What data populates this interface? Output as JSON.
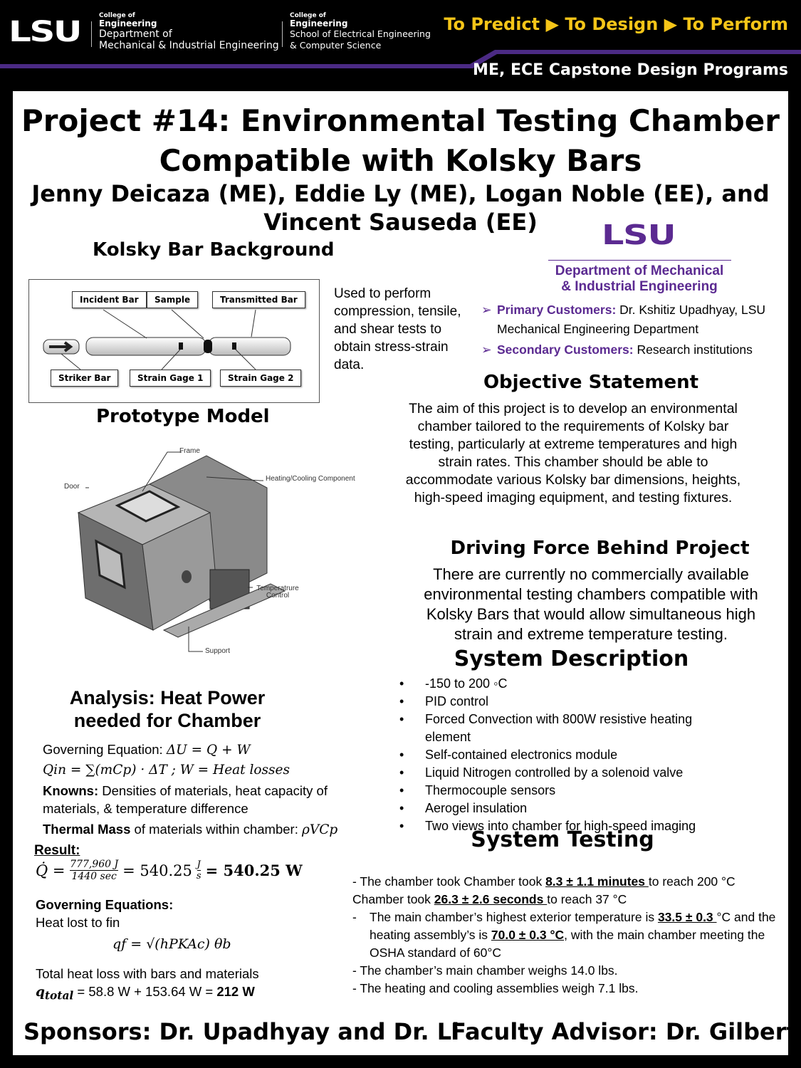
{
  "header": {
    "logo": "LSU",
    "college_of": "College of",
    "engineering": "Engineering",
    "dept1": [
      "Department of",
      "Mechanical & Industrial Engineering"
    ],
    "dept2": [
      "School of Electrical Engineering",
      "& Computer Science"
    ],
    "tagline": "To Predict ▶ To Design ▶ To Perform",
    "program": "ME, ECE Capstone Design Programs",
    "accent": "#4b2a84",
    "tag_color": "#f5c518"
  },
  "title": [
    "Project #14: Environmental Testing Chamber",
    "Compatible with Kolsky Bars"
  ],
  "authors": [
    "Jenny Deicaza (ME), Eddie Ly (ME), Logan Noble (EE), and",
    "Vincent Sauseda (EE)"
  ],
  "kolsky": {
    "heading": "Kolsky Bar Background",
    "labels": [
      "Incident Bar",
      "Sample",
      "Transmitted Bar",
      "Striker Bar",
      "Strain Gage 1",
      "Strain Gage 2"
    ],
    "text": "Used to perform compression, tensile, and shear tests to obtain stress-strain data."
  },
  "dept_logo": {
    "logo": "LSU",
    "line1": "Department of Mechanical",
    "line2": "& Industrial Engineering"
  },
  "customers": {
    "primary_label": "Primary Customers:",
    "primary": " Dr. Kshitiz Upadhyay, LSU Mechanical Engineering Department",
    "secondary_label": "Secondary Customers:",
    "secondary": " Research institutions"
  },
  "prototype": {
    "heading": "Prototype Model",
    "labels": [
      "Frame",
      "Heating/Cooling Component",
      "Door",
      "Temperatrure Control",
      "Support"
    ]
  },
  "objective": {
    "heading": "Objective Statement",
    "text": "The aim of this project is to develop an environmental chamber tailored to the requirements of Kolsky bar testing, particularly at extreme temperatures and high strain rates. This chamber should be able to accommodate various Kolsky bar dimensions, heights, high-speed imaging equipment, and testing fixtures."
  },
  "driving": {
    "heading": "Driving Force Behind Project",
    "text": "There are currently no commercially available environmental testing chambers compatible with Kolsky Bars that would allow simultaneous high strain and extreme temperature testing."
  },
  "system_description": {
    "heading": "System Description",
    "items": [
      "-150 to 200 ◦C",
      "PID control",
      "Forced Convection with 800W resistive heating element",
      "Self-contained electronics module",
      "Liquid Nitrogen controlled by a solenoid valve",
      "Thermocouple sensors",
      "Aerogel insulation",
      "Two views into chamber for high-speed imaging"
    ]
  },
  "analysis": {
    "heading": [
      "Analysis: Heat Power",
      "needed for Chamber"
    ],
    "gov_label": "Governing Equation: ",
    "gov_eq": "ΔU = Q + W",
    "qin_eq": "Qin = ∑(mCp) · ΔT ; W = Heat losses",
    "knowns_label": "Knowns:",
    "knowns": " Densities of materials, heat capacity of materials, & temperature difference",
    "thermal_label": "Thermal Mass",
    "thermal": " of materials within chamber:",
    "thermal_eq": "ρVCp",
    "result_label": "Result:",
    "q_num": "777,960 J",
    "q_den": "1440 sec",
    "q_mid": "= 540.25",
    "q_unit_num": "J",
    "q_unit_den": "s",
    "q_final": "= 540.25 W",
    "gov2_label": "Governing Equations:",
    "fin_label": "Heat lost to fin",
    "fin_eq": "qf = √(hPKAc) θb",
    "total_label": "Total heat loss with bars and materials",
    "total_eq": "= 58.8 W + 153.64 W =",
    "total_result": "212 W"
  },
  "testing": {
    "heading": "System Testing",
    "l1a": "- The chamber took Chamber took ",
    "l1b": "8.3 ± 1.1 minutes ",
    "l1c": "to reach 200 °C",
    "l2a": "Chamber took ",
    "l2b": "26.3 ± 2.6 seconds ",
    "l2c": "to reach 37 °C",
    "l3a": "The main chamber’s highest exterior temperature is ",
    "l3b": "33.5 ± 0.3 ",
    "l3c": "°C and the heating assembly’s is ",
    "l3d": "70.0 ± 0.3 °C",
    "l3e": ", with the main chamber meeting the OSHA standard of 60°C",
    "l4": "- The chamber’s main chamber weighs 14.0 lbs.",
    "l5": "- The heating and cooling assemblies weigh 7.1 lbs."
  },
  "footer": {
    "sponsors": "Sponsors: Dr. Upadhyay and Dr. Li",
    "advisor": "Faculty Advisor: Dr. Gilbert"
  }
}
